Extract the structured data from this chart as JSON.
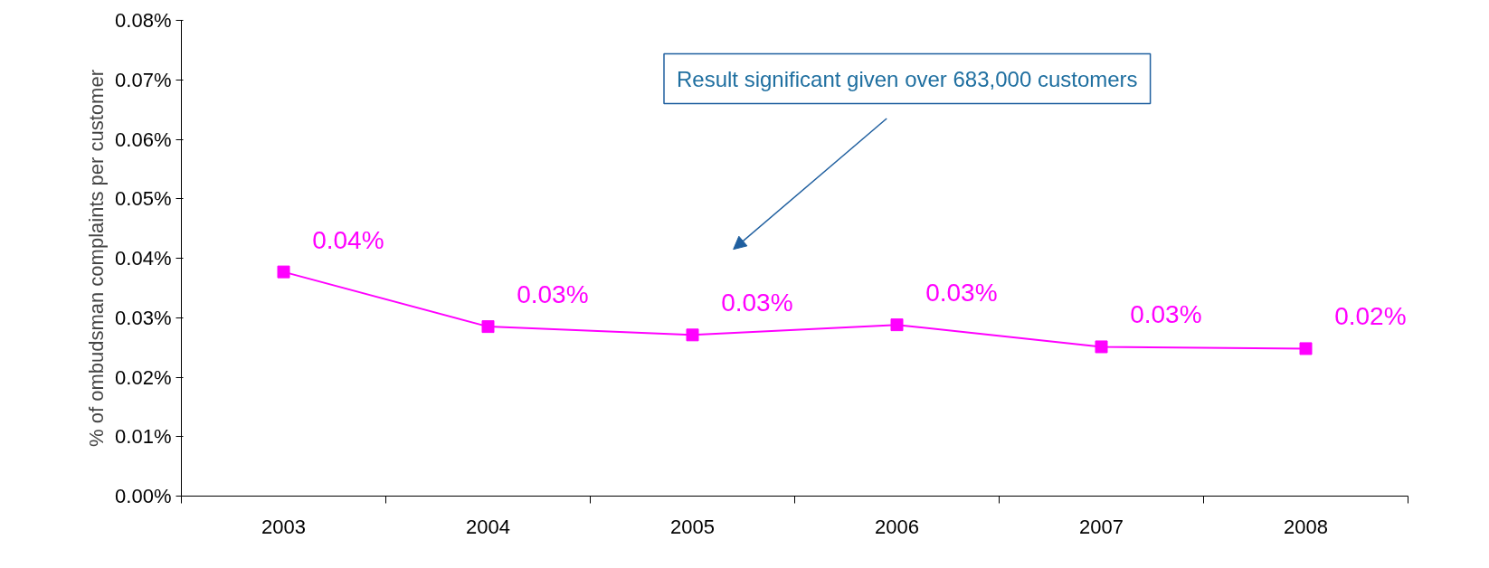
{
  "chart_data": {
    "type": "line",
    "ylabel": "% of ombudsman complaints per customer",
    "categories": [
      "2003",
      "2004",
      "2005",
      "2006",
      "2007",
      "2008"
    ],
    "series": [
      {
        "color": "#ff00ff",
        "values": [
          0.0377,
          0.0285,
          0.0271,
          0.0288,
          0.0251,
          0.0248
        ],
        "value_labels": [
          "0.04%",
          "0.03%",
          "0.03%",
          "0.03%",
          "0.03%",
          "0.02%"
        ]
      }
    ],
    "ylim": [
      0,
      0.08
    ],
    "yticks": [
      {
        "value": 0,
        "label": "0.00%"
      },
      {
        "value": 0.01,
        "label": "0.01%"
      },
      {
        "value": 0.02,
        "label": "0.02%"
      },
      {
        "value": 0.03,
        "label": "0.03%"
      },
      {
        "value": 0.04,
        "label": "0.04%"
      },
      {
        "value": 0.05,
        "label": "0.05%"
      },
      {
        "value": 0.06,
        "label": "0.06%"
      },
      {
        "value": 0.07,
        "label": "0.07%"
      },
      {
        "value": 0.08,
        "label": "0.08%"
      }
    ],
    "marker": "square",
    "grid": false,
    "annotations": [
      "Result significant given over 683,000 customers"
    ]
  }
}
